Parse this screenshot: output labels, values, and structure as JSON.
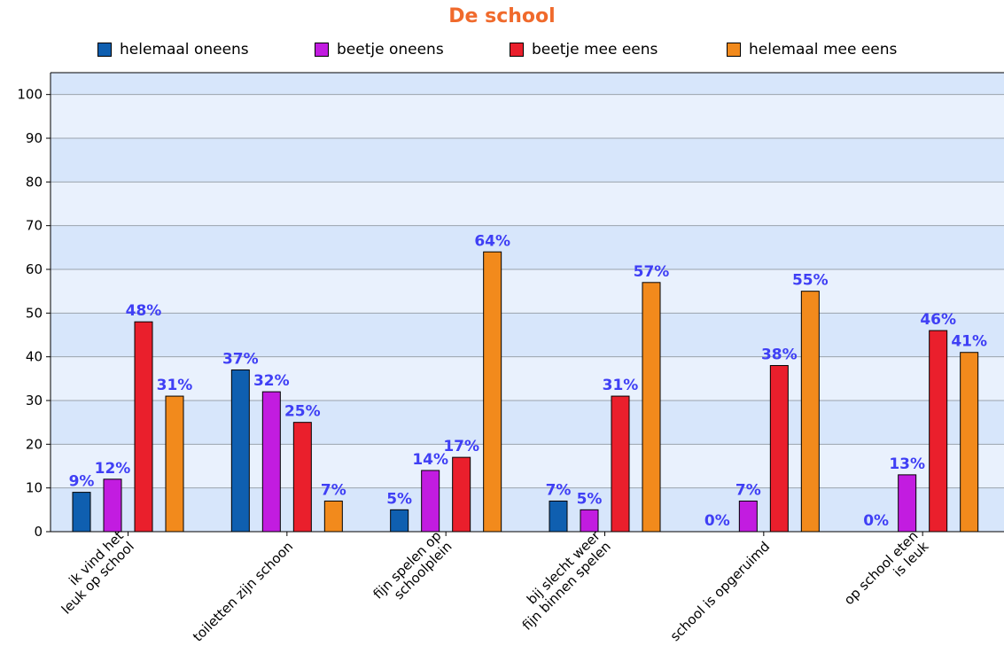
{
  "chart_data": {
    "type": "bar",
    "title": "De school",
    "xlabel": "",
    "ylabel": "",
    "ylim": [
      0,
      105
    ],
    "yticks": [
      0,
      10,
      20,
      30,
      40,
      50,
      60,
      70,
      80,
      90,
      100
    ],
    "grid": true,
    "legend_position": "top",
    "categories": [
      [
        "ik vind het",
        "leuk op school"
      ],
      [
        "toiletten zijn schoon"
      ],
      [
        "fijn spelen op",
        "schoolplein"
      ],
      [
        "bij slecht weer",
        "fijn binnen spelen"
      ],
      [
        "school is opgeruimd"
      ],
      [
        "op school eten",
        "is leuk"
      ]
    ],
    "series": [
      {
        "name": "helemaal oneens",
        "color": "#0f5fb0",
        "values": [
          9,
          37,
          5,
          7,
          0,
          0
        ],
        "labels": [
          "9%",
          "37%",
          "5%",
          "7%",
          "0%",
          "0%"
        ]
      },
      {
        "name": "beetje oneens",
        "color": "#c21ce0",
        "values": [
          12,
          32,
          14,
          5,
          7,
          13
        ],
        "labels": [
          "12%",
          "32%",
          "14%",
          "5%",
          "7%",
          "13%"
        ]
      },
      {
        "name": "beetje mee eens",
        "color": "#ea1f2c",
        "values": [
          48,
          25,
          17,
          31,
          38,
          46
        ],
        "labels": [
          "48%",
          "25%",
          "17%",
          "31%",
          "38%",
          "46%"
        ]
      },
      {
        "name": "helemaal mee eens",
        "color": "#f28a1c",
        "values": [
          31,
          7,
          64,
          57,
          55,
          41
        ],
        "labels": [
          "31%",
          "7%",
          "64%",
          "57%",
          "55%",
          "41%"
        ]
      }
    ],
    "colors": {
      "band_dark": "#d7e6fb",
      "band_light": "#e9f1fd",
      "gridline": "#9aa3ad",
      "data_label": "#3f3ff5",
      "title": "#f06a2c"
    }
  }
}
